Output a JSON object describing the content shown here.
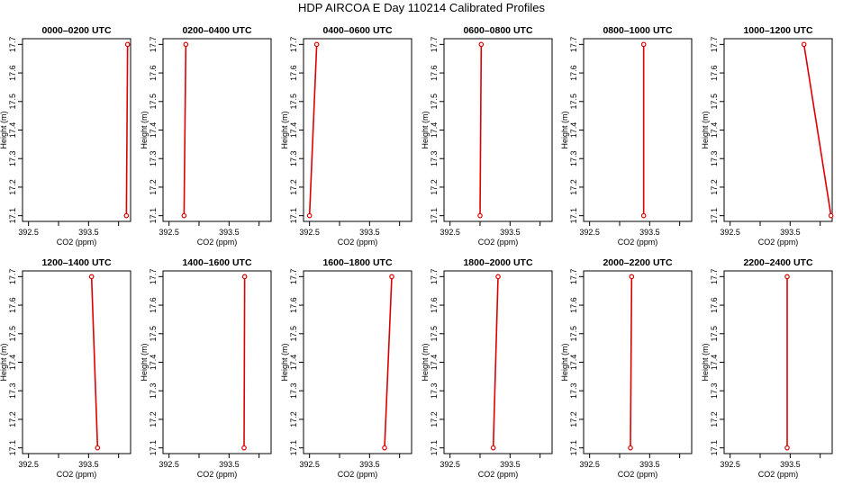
{
  "title": "HDP AIRCOA E  Day 110214  Calibrated Profiles",
  "chart_data": {
    "type": "line",
    "xlabel": "CO2 (ppm)",
    "ylabel": "Height (m)",
    "xlim": [
      392.4,
      394.2
    ],
    "ylim": [
      17.08,
      17.72
    ],
    "xticks": [
      "392.5",
      "393.5"
    ],
    "yticks": [
      "17.1",
      "17.2",
      "17.3",
      "17.4",
      "17.5",
      "17.6",
      "17.7"
    ],
    "panels": [
      {
        "title": "0000–0200 UTC",
        "x": [
          394.13,
          394.15
        ],
        "y": [
          17.1,
          17.7
        ]
      },
      {
        "title": "0200–0400 UTC",
        "x": [
          392.75,
          392.78
        ],
        "y": [
          17.1,
          17.7
        ]
      },
      {
        "title": "0400–0600 UTC",
        "x": [
          392.5,
          392.62
        ],
        "y": [
          17.1,
          17.7
        ]
      },
      {
        "title": "0600–0800 UTC",
        "x": [
          393.0,
          393.02
        ],
        "y": [
          17.1,
          17.7
        ]
      },
      {
        "title": "0800–1000 UTC",
        "x": [
          393.4,
          393.4
        ],
        "y": [
          17.1,
          17.7
        ]
      },
      {
        "title": "1000–1200 UTC",
        "x": [
          394.18,
          393.73
        ],
        "y": [
          17.1,
          17.7
        ]
      },
      {
        "title": "1200–1400 UTC",
        "x": [
          393.65,
          393.55
        ],
        "y": [
          17.1,
          17.7
        ]
      },
      {
        "title": "1400–1600 UTC",
        "x": [
          393.75,
          393.76
        ],
        "y": [
          17.1,
          17.7
        ]
      },
      {
        "title": "1600–1800 UTC",
        "x": [
          393.75,
          393.87
        ],
        "y": [
          17.1,
          17.7
        ]
      },
      {
        "title": "1800–2000 UTC",
        "x": [
          393.22,
          393.3
        ],
        "y": [
          17.1,
          17.7
        ]
      },
      {
        "title": "2000–2200 UTC",
        "x": [
          393.18,
          393.2
        ],
        "y": [
          17.1,
          17.7
        ]
      },
      {
        "title": "2200–2400 UTC",
        "x": [
          393.45,
          393.45
        ],
        "y": [
          17.1,
          17.7
        ]
      }
    ]
  }
}
